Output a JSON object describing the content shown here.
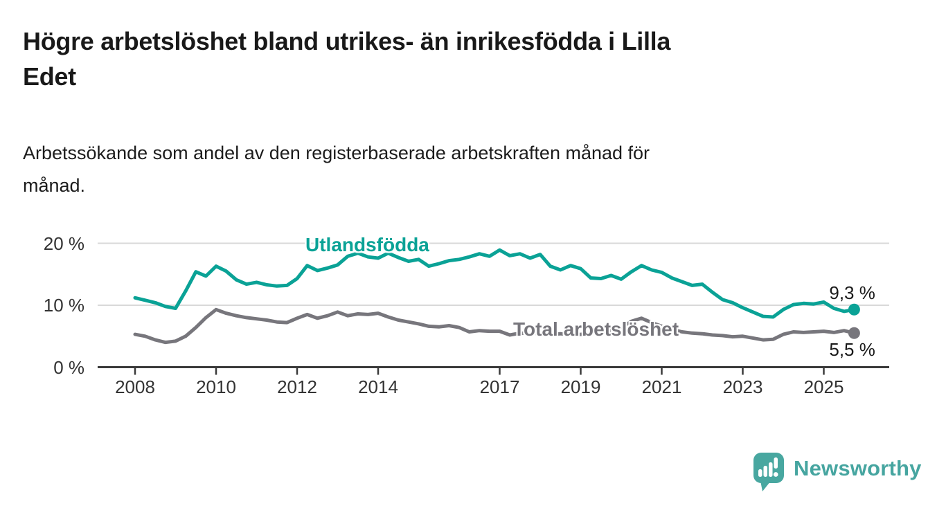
{
  "header": {
    "title_lines": [
      "Högre arbetslöshet bland utrikes- än inrikesfödda i Lilla",
      "Edet"
    ],
    "subtitle_lines": [
      "Arbetssökande som andel av den registerbaserade arbetskraften månad för",
      "månad."
    ]
  },
  "chart_data": {
    "type": "line",
    "title": "Högre arbetslöshet bland utrikes- än inrikesfödda i Lilla Edet",
    "subtitle": "Arbetssökande som andel av den registerbaserade arbetskraften månad för månad.",
    "unit": "%",
    "xlim": [
      2007.05,
      2026.6
    ],
    "ylim": [
      0,
      21.5
    ],
    "grid": "horizontal",
    "x": [
      2008.0,
      2008.25,
      2008.5,
      2008.75,
      2009.0,
      2009.25,
      2009.5,
      2009.75,
      2010.0,
      2010.25,
      2010.5,
      2010.75,
      2011.0,
      2011.25,
      2011.5,
      2011.75,
      2012.0,
      2012.25,
      2012.5,
      2012.75,
      2013.0,
      2013.25,
      2013.5,
      2013.75,
      2014.0,
      2014.25,
      2014.5,
      2014.75,
      2015.0,
      2015.25,
      2015.5,
      2015.75,
      2016.0,
      2016.25,
      2016.5,
      2016.75,
      2017.0,
      2017.25,
      2017.5,
      2017.75,
      2018.0,
      2018.25,
      2018.5,
      2018.75,
      2019.0,
      2019.25,
      2019.5,
      2019.75,
      2020.0,
      2020.25,
      2020.5,
      2020.75,
      2021.0,
      2021.25,
      2021.5,
      2021.75,
      2022.0,
      2022.25,
      2022.5,
      2022.75,
      2023.0,
      2023.25,
      2023.5,
      2023.75,
      2024.0,
      2024.25,
      2024.5,
      2024.75,
      2025.0,
      2025.25,
      2025.5,
      2025.75
    ],
    "series": [
      {
        "name": "Utlandsfödda",
        "color": "#0aa296",
        "end_label": "9,3 %",
        "values": [
          11.2,
          10.8,
          10.4,
          9.8,
          9.5,
          12.3,
          15.4,
          14.7,
          16.3,
          15.5,
          14.1,
          13.4,
          13.7,
          13.3,
          13.1,
          13.2,
          14.3,
          16.4,
          15.6,
          16.0,
          16.5,
          17.9,
          18.4,
          17.8,
          17.6,
          18.4,
          17.7,
          17.1,
          17.4,
          16.3,
          16.7,
          17.2,
          17.4,
          17.8,
          18.3,
          17.9,
          18.9,
          18.0,
          18.3,
          17.6,
          18.2,
          16.3,
          15.7,
          16.4,
          15.9,
          14.4,
          14.3,
          14.8,
          14.2,
          15.4,
          16.4,
          15.7,
          15.3,
          14.4,
          13.8,
          13.2,
          13.4,
          12.1,
          10.9,
          10.4,
          9.6,
          8.9,
          8.2,
          8.1,
          9.3,
          10.1,
          10.3,
          10.2,
          10.5,
          9.5,
          9.0,
          9.3
        ]
      },
      {
        "name": "Total arbetslöshet",
        "color": "#77767c",
        "end_label": "5,5 %",
        "values": [
          5.3,
          5.0,
          4.4,
          4.0,
          4.2,
          5.0,
          6.4,
          8.0,
          9.3,
          8.7,
          8.3,
          8.0,
          7.8,
          7.6,
          7.3,
          7.2,
          7.9,
          8.5,
          7.9,
          8.3,
          8.9,
          8.3,
          8.6,
          8.5,
          8.7,
          8.1,
          7.6,
          7.3,
          7.0,
          6.6,
          6.5,
          6.7,
          6.4,
          5.7,
          5.9,
          5.8,
          5.8,
          5.2,
          5.5,
          5.4,
          5.5,
          5.3,
          5.4,
          5.2,
          5.3,
          5.4,
          5.6,
          5.9,
          6.3,
          7.4,
          7.9,
          7.2,
          6.6,
          6.1,
          5.7,
          5.5,
          5.4,
          5.2,
          5.1,
          4.9,
          5.0,
          4.7,
          4.4,
          4.5,
          5.3,
          5.7,
          5.6,
          5.7,
          5.8,
          5.6,
          5.9,
          5.5
        ]
      }
    ],
    "yticks": [
      {
        "value": 0,
        "label": "0 %"
      },
      {
        "value": 10,
        "label": "10 %"
      },
      {
        "value": 20,
        "label": "20 %"
      }
    ],
    "xticks": [
      {
        "year": 2008,
        "label": "2008"
      },
      {
        "year": 2010,
        "label": "2010"
      },
      {
        "year": 2012,
        "label": "2012"
      },
      {
        "year": 2014,
        "label": "2014"
      },
      {
        "year": 2017,
        "label": "2017"
      },
      {
        "year": 2019,
        "label": "2019"
      },
      {
        "year": 2021,
        "label": "2021"
      },
      {
        "year": 2023,
        "label": "2023"
      },
      {
        "year": 2025,
        "label": "2025"
      }
    ],
    "colors": {
      "grid": "#d9d9d9",
      "axis": "#3a3a3a",
      "tick_text": "#333333"
    }
  },
  "footer": {
    "brand": "Newsworthy",
    "brand_color": "#48a7a0"
  }
}
